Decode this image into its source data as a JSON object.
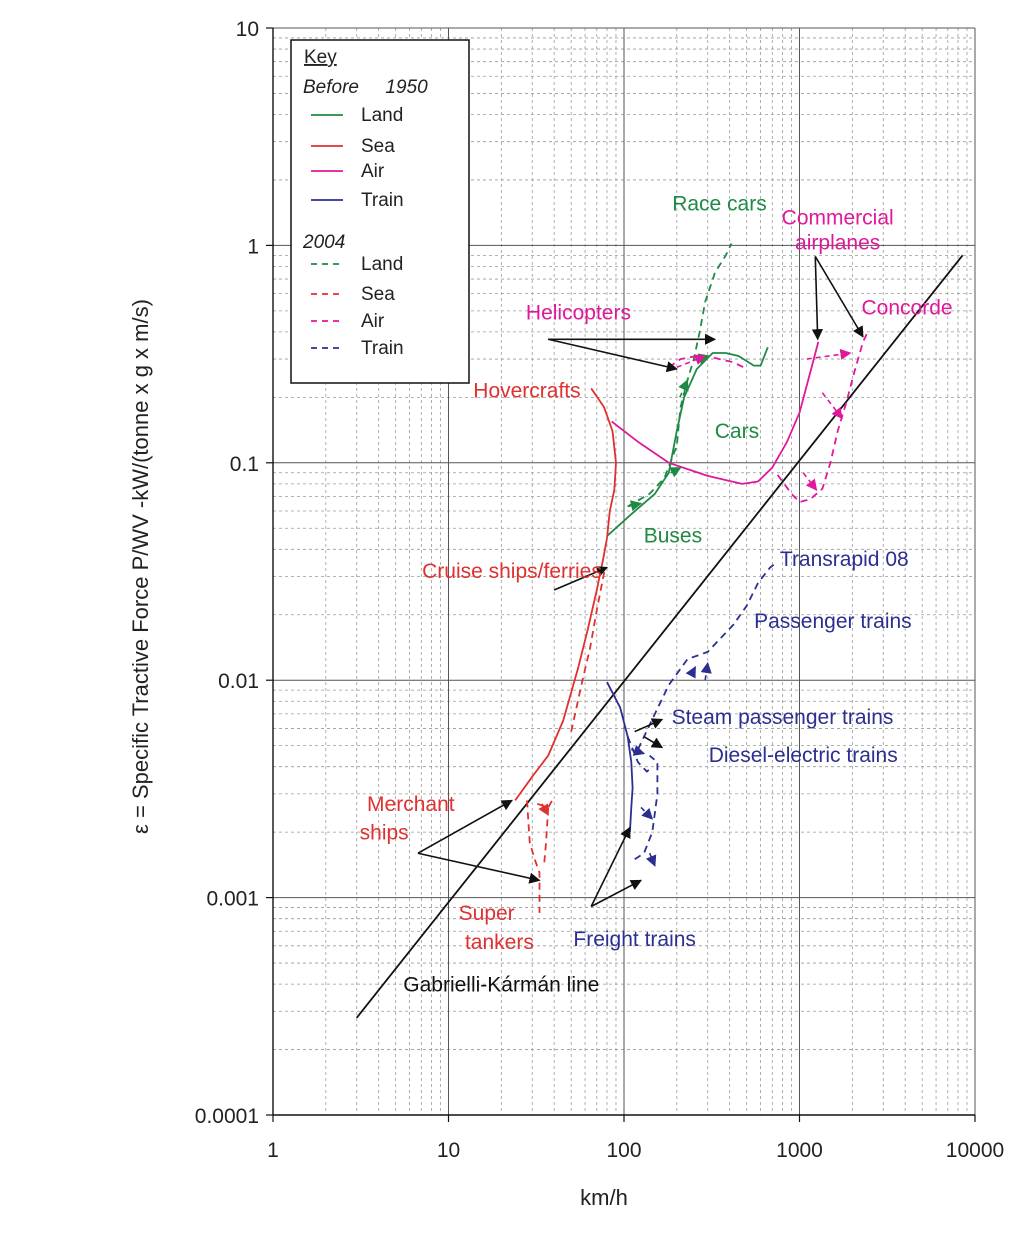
{
  "chart_data": {
    "type": "line",
    "title": "",
    "xlabel": "km/h",
    "ylabel": "ε = Specific Tractive Force P/WV -kW/(tonne x g x m/s)",
    "x_scale": "log",
    "y_scale": "log",
    "xlim": [
      1,
      10000
    ],
    "ylim": [
      0.0001,
      10
    ],
    "x_ticks": [
      1,
      10,
      100,
      1000,
      10000
    ],
    "x_tick_labels": [
      "1",
      "10",
      "100",
      "1000",
      "10000"
    ],
    "y_ticks": [
      0.0001,
      0.001,
      0.01,
      0.1,
      1,
      10
    ],
    "y_tick_labels": [
      "0.0001",
      "0.001",
      "0.01",
      "0.1",
      "1",
      "10"
    ],
    "grid": "major solid, minor dashed",
    "legend": {
      "position": "top-left",
      "title": "Key",
      "group_before": "Before     1950",
      "group_2004": "2004",
      "entries_before": [
        {
          "label": "Land",
          "color": "#1f8a45"
        },
        {
          "label": "Sea",
          "color": "#e03030"
        },
        {
          "label": "Air",
          "color": "#e0189a"
        },
        {
          "label": "Train",
          "color": "#2b2f8f"
        }
      ],
      "entries_2004": [
        {
          "label": "Land",
          "color": "#1f8a45"
        },
        {
          "label": "Sea",
          "color": "#e03030"
        },
        {
          "label": "Air",
          "color": "#e0189a"
        },
        {
          "label": "Train",
          "color": "#2b2f8f"
        }
      ]
    },
    "colors": {
      "land": "#1f8a45",
      "sea": "#e03030",
      "air": "#e0189a",
      "train": "#2b2f8f",
      "line": "#111111"
    },
    "series": [
      {
        "category": "line",
        "era": "ref",
        "points": [
          [
            3,
            0.00028
          ],
          [
            8500,
            0.9
          ]
        ]
      },
      {
        "category": "land",
        "era": "before",
        "points": [
          [
            80,
            0.046
          ],
          [
            110,
            0.058
          ],
          [
            150,
            0.072
          ],
          [
            180,
            0.09
          ],
          [
            200,
            0.14
          ],
          [
            220,
            0.2
          ],
          [
            260,
            0.27
          ],
          [
            320,
            0.32
          ],
          [
            380,
            0.32
          ],
          [
            450,
            0.31
          ],
          [
            550,
            0.28
          ],
          [
            600,
            0.28
          ],
          [
            660,
            0.34
          ]
        ]
      },
      {
        "category": "land",
        "era": "2004",
        "points": [
          [
            105,
            0.063
          ],
          [
            140,
            0.072
          ],
          [
            170,
            0.085
          ],
          [
            200,
            0.12
          ],
          [
            210,
            0.18
          ],
          [
            230,
            0.24
          ],
          [
            250,
            0.3
          ],
          [
            270,
            0.4
          ],
          [
            290,
            0.55
          ],
          [
            330,
            0.75
          ],
          [
            380,
            0.9
          ],
          [
            410,
            1.02
          ]
        ]
      },
      {
        "category": "sea",
        "era": "before",
        "points": [
          [
            24,
            0.0028
          ],
          [
            30,
            0.0036
          ],
          [
            37,
            0.0045
          ],
          [
            45,
            0.0065
          ],
          [
            55,
            0.0115
          ],
          [
            62,
            0.017
          ],
          [
            70,
            0.026
          ],
          [
            76,
            0.036
          ],
          [
            80,
            0.045
          ]
        ]
      },
      {
        "category": "sea",
        "era": "before",
        "points": [
          [
            80,
            0.045
          ],
          [
            83,
            0.06
          ],
          [
            88,
            0.075
          ],
          [
            90,
            0.1
          ],
          [
            86,
            0.14
          ],
          [
            77,
            0.18
          ],
          [
            65,
            0.22
          ]
        ]
      },
      {
        "category": "sea",
        "era": "2004",
        "points": [
          [
            28,
            0.0028
          ],
          [
            29,
            0.0018
          ],
          [
            31,
            0.0015
          ],
          [
            33,
            0.0013
          ],
          [
            33,
            0.00085
          ]
        ]
      },
      {
        "category": "sea",
        "era": "2004",
        "points": [
          [
            32,
            0.0027
          ],
          [
            37,
            0.0026
          ],
          [
            39,
            0.0028
          ]
        ]
      },
      {
        "category": "sea",
        "era": "2004",
        "points": [
          [
            37,
            0.0026
          ],
          [
            36,
            0.0018
          ],
          [
            35,
            0.0014
          ]
        ]
      },
      {
        "category": "sea",
        "era": "2004",
        "points": [
          [
            50,
            0.0058
          ],
          [
            58,
            0.01
          ],
          [
            64,
            0.014
          ],
          [
            70,
            0.021
          ],
          [
            78,
            0.033
          ]
        ]
      },
      {
        "category": "air",
        "era": "before",
        "points": [
          [
            85,
            0.155
          ],
          [
            120,
            0.125
          ],
          [
            180,
            0.1
          ],
          [
            300,
            0.087
          ],
          [
            470,
            0.08
          ],
          [
            580,
            0.082
          ],
          [
            700,
            0.095
          ],
          [
            850,
            0.125
          ],
          [
            1000,
            0.17
          ],
          [
            1150,
            0.26
          ],
          [
            1280,
            0.36
          ]
        ]
      },
      {
        "category": "air",
        "era": "2004",
        "points": [
          [
            180,
            0.275
          ],
          [
            210,
            0.3
          ],
          [
            260,
            0.31
          ],
          [
            320,
            0.305
          ],
          [
            420,
            0.29
          ],
          [
            480,
            0.275
          ]
        ]
      },
      {
        "category": "air",
        "era": "2004",
        "points": [
          [
            750,
            0.088
          ],
          [
            900,
            0.072
          ],
          [
            1000,
            0.066
          ],
          [
            1150,
            0.068
          ],
          [
            1350,
            0.076
          ],
          [
            1500,
            0.1
          ],
          [
            1650,
            0.14
          ],
          [
            1850,
            0.19
          ],
          [
            2050,
            0.26
          ],
          [
            2300,
            0.36
          ],
          [
            2450,
            0.4
          ]
        ]
      },
      {
        "category": "train",
        "era": "before",
        "points": [
          [
            80,
            0.0098
          ],
          [
            95,
            0.0075
          ],
          [
            105,
            0.0055
          ],
          [
            110,
            0.0042
          ],
          [
            112,
            0.0032
          ],
          [
            110,
            0.0026
          ],
          [
            108,
            0.002
          ]
        ]
      },
      {
        "category": "train",
        "era": "2004",
        "points": [
          [
            115,
            0.0015
          ],
          [
            130,
            0.0016
          ],
          [
            145,
            0.002
          ],
          [
            155,
            0.003
          ],
          [
            155,
            0.0042
          ],
          [
            140,
            0.0045
          ]
        ]
      },
      {
        "category": "train",
        "era": "2004",
        "points": [
          [
            105,
            0.0055
          ],
          [
            120,
            0.0042
          ],
          [
            135,
            0.0038
          ],
          [
            145,
            0.004
          ]
        ]
      },
      {
        "category": "train",
        "era": "2004",
        "points": [
          [
            120,
            0.0048
          ],
          [
            150,
            0.007
          ],
          [
            180,
            0.0095
          ],
          [
            230,
            0.0125
          ],
          [
            300,
            0.0135
          ],
          [
            420,
            0.018
          ],
          [
            500,
            0.022
          ],
          [
            580,
            0.028
          ],
          [
            680,
            0.033
          ],
          [
            750,
            0.035
          ]
        ]
      }
    ],
    "annotations": [
      {
        "text": "Race cars",
        "category": "land",
        "anchor": [
          350,
          1.45
        ]
      },
      {
        "text": "Cars",
        "category": "land",
        "anchor": [
          440,
          0.13
        ]
      },
      {
        "text": "Buses",
        "category": "land",
        "anchor": [
          190,
          0.043
        ]
      },
      {
        "text": "Commercial",
        "category": "air",
        "anchor": [
          1650,
          1.25
        ]
      },
      {
        "text": "airplanes",
        "category": "air",
        "anchor": [
          1650,
          0.96
        ]
      },
      {
        "text": "Concorde",
        "category": "air",
        "anchor": [
          4100,
          0.48
        ]
      },
      {
        "text": "Helicopters",
        "category": "air",
        "anchor": [
          55,
          0.455
        ]
      },
      {
        "text": "Hovercrafts",
        "category": "sea",
        "anchor": [
          28,
          0.2
        ]
      },
      {
        "text": "Cruise ships/ferries",
        "category": "sea",
        "anchor": [
          23,
          0.0295
        ]
      },
      {
        "text": "Merchant",
        "category": "sea",
        "anchor": [
          6.1,
          0.0025
        ]
      },
      {
        "text": "ships",
        "category": "sea",
        "anchor": [
          4.3,
          0.00185
        ]
      },
      {
        "text": "Super",
        "category": "sea",
        "anchor": [
          16.5,
          0.00079
        ]
      },
      {
        "text": "tankers",
        "category": "sea",
        "anchor": [
          19.5,
          0.00058
        ]
      },
      {
        "text": "Transrapid 08",
        "category": "train",
        "anchor": [
          1800,
          0.0335
        ]
      },
      {
        "text": "Passenger trains",
        "category": "train",
        "anchor": [
          1550,
          0.0174
        ]
      },
      {
        "text": "Steam passenger trains",
        "category": "train",
        "anchor": [
          800,
          0.0063
        ]
      },
      {
        "text": "Diesel-electric trains",
        "category": "train",
        "anchor": [
          1050,
          0.0042
        ]
      },
      {
        "text": "Freight trains",
        "category": "train",
        "anchor": [
          115,
          0.0006
        ]
      },
      {
        "text": "Gabrielli-Kármán line",
        "category": "line",
        "anchor": [
          20,
          0.00037
        ]
      }
    ],
    "arrows": [
      {
        "category": "land",
        "from": [
          185,
          0.09
        ],
        "to": [
          210,
          0.095
        ]
      },
      {
        "category": "land",
        "from": [
          208,
          0.2
        ],
        "to": [
          230,
          0.24
        ]
      },
      {
        "category": "land",
        "from": [
          265,
          0.3
        ],
        "to": [
          305,
          0.31
        ]
      },
      {
        "category": "land",
        "from": [
          105,
          0.063
        ],
        "to": [
          125,
          0.065
        ]
      },
      {
        "category": "air",
        "from": [
          200,
          0.275
        ],
        "to": [
          290,
          0.31
        ]
      },
      {
        "category": "air",
        "from": [
          1100,
          0.3
        ],
        "to": [
          1950,
          0.32
        ]
      },
      {
        "category": "air",
        "from": [
          1350,
          0.21
        ],
        "to": [
          1750,
          0.16
        ]
      },
      {
        "category": "air",
        "from": [
          1050,
          0.09
        ],
        "to": [
          1250,
          0.075
        ]
      },
      {
        "category": "sea",
        "from": [
          34,
          0.0027
        ],
        "to": [
          37,
          0.0024
        ]
      },
      {
        "category": "train",
        "from": [
          125,
          0.0026
        ],
        "to": [
          145,
          0.0023
        ]
      },
      {
        "category": "train",
        "from": [
          140,
          0.0016
        ],
        "to": [
          150,
          0.0014
        ]
      },
      {
        "category": "train",
        "from": [
          110,
          0.0048
        ],
        "to": [
          130,
          0.0046
        ]
      },
      {
        "category": "train",
        "from": [
          240,
          0.0105
        ],
        "to": [
          255,
          0.0115
        ]
      },
      {
        "category": "train",
        "from": [
          290,
          0.01
        ],
        "to": [
          300,
          0.012
        ]
      }
    ],
    "pointers": [
      {
        "from": [
          37,
          0.37
        ],
        "to": [
          200,
          0.27
        ]
      },
      {
        "from": [
          37,
          0.37
        ],
        "to": [
          330,
          0.37
        ]
      },
      {
        "from": [
          1230,
          0.89
        ],
        "to": [
          1270,
          0.37
        ]
      },
      {
        "from": [
          1230,
          0.89
        ],
        "to": [
          2300,
          0.38
        ]
      },
      {
        "from": [
          6.7,
          0.0016
        ],
        "to": [
          23,
          0.0028
        ]
      },
      {
        "from": [
          6.7,
          0.0016
        ],
        "to": [
          33,
          0.0012
        ]
      },
      {
        "from": [
          40,
          0.026
        ],
        "to": [
          80,
          0.033
        ]
      },
      {
        "from": [
          65,
          0.00091
        ],
        "to": [
          108,
          0.0021
        ]
      },
      {
        "from": [
          65,
          0.00091
        ],
        "to": [
          125,
          0.0012
        ]
      },
      {
        "from": [
          115,
          0.0058
        ],
        "to": [
          165,
          0.0066
        ]
      },
      {
        "from": [
          130,
          0.0055
        ],
        "to": [
          165,
          0.0049
        ]
      }
    ]
  }
}
